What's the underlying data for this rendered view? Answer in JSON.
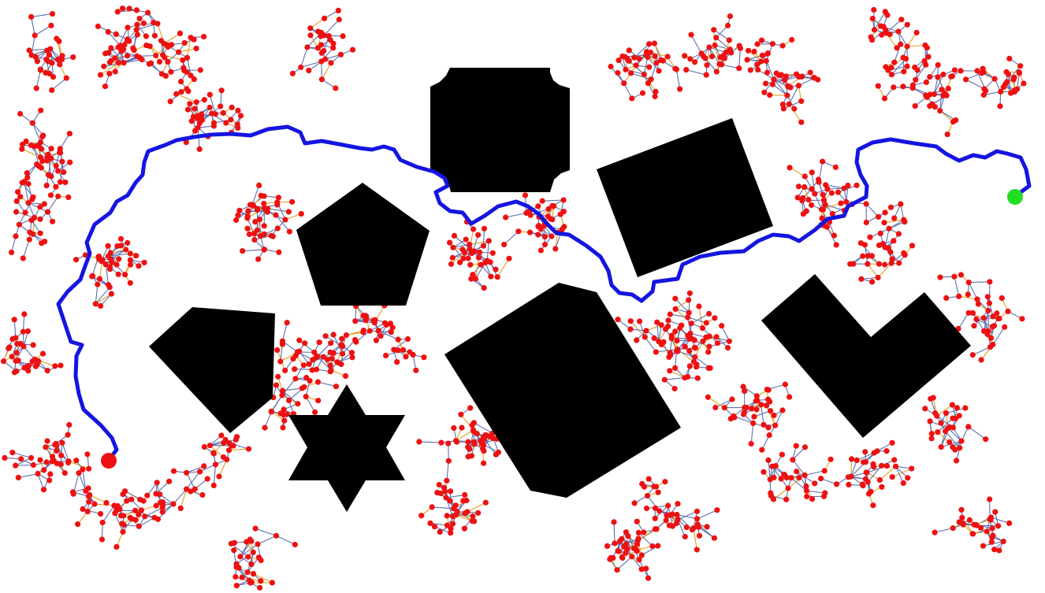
{
  "scene": {
    "description_type": "rrt-path-planning",
    "background_color": "#ffffff",
    "obstacle_color": "#000000",
    "tree_edge_color": "#5a6fb0",
    "tree_edge_accent_color": "#e0a020",
    "tree_node_color": "#ee1111",
    "path_color": "#1515e0",
    "start_color": "#ee1111",
    "goal_color": "#22dd22"
  },
  "legend_items": []
}
